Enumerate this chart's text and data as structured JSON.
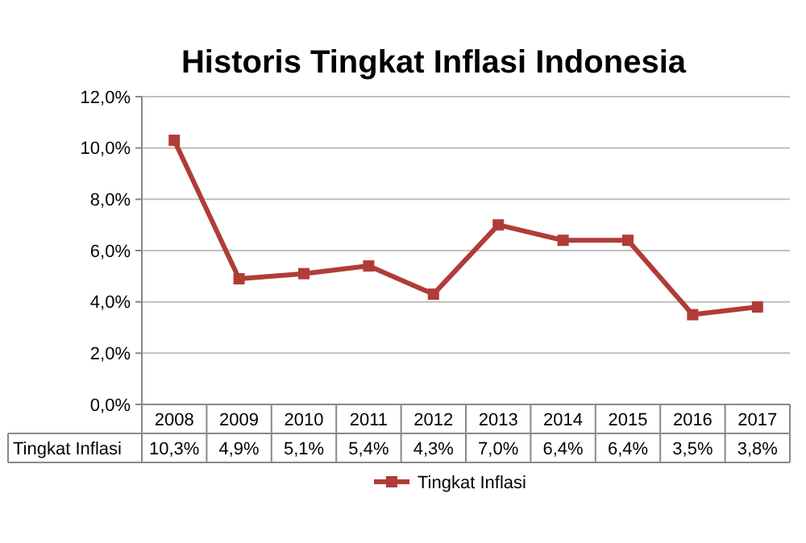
{
  "chart_data": {
    "type": "line",
    "title": "Historis Tingkat Inflasi Indonesia",
    "categories": [
      "2008",
      "2009",
      "2010",
      "2011",
      "2012",
      "2013",
      "2014",
      "2015",
      "2016",
      "2017"
    ],
    "series": [
      {
        "name": "Tingkat Inflasi",
        "color": "#b03c38",
        "values": [
          10.3,
          4.9,
          5.1,
          5.4,
          4.3,
          7.0,
          6.4,
          6.4,
          3.5,
          3.8
        ],
        "value_labels": [
          "10,3%",
          "4,9%",
          "5,1%",
          "5,4%",
          "4,3%",
          "7,0%",
          "6,4%",
          "6,4%",
          "3,5%",
          "3,8%"
        ]
      }
    ],
    "ylim": [
      0,
      12
    ],
    "yticks": [
      {
        "value": 0,
        "label": "0,0%"
      },
      {
        "value": 2,
        "label": "2,0%"
      },
      {
        "value": 4,
        "label": "4,0%"
      },
      {
        "value": 6,
        "label": "6,0%"
      },
      {
        "value": 8,
        "label": "8,0%"
      },
      {
        "value": 10,
        "label": "10,0%"
      },
      {
        "value": 12,
        "label": "12,0%"
      }
    ],
    "grid": "y",
    "legend": "bottom",
    "marker": "square",
    "line_style": "solid"
  }
}
